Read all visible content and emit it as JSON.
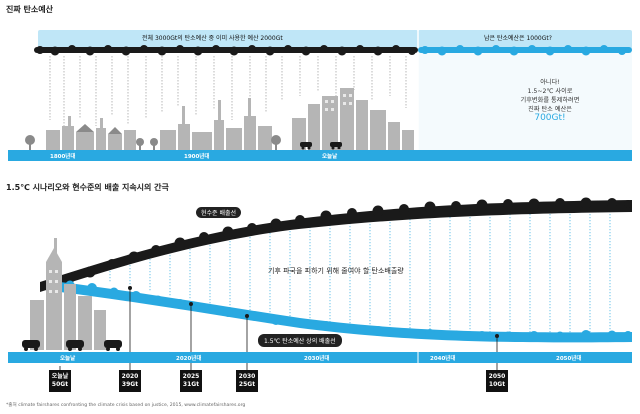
{
  "section1": {
    "title": "진짜 탄소예산",
    "band_used": "전체 3000Gt의 탄소예산 중 이미 사용한 예산 2000Gt",
    "band_remaining": "남은 탄소예산은 1000Gt?",
    "note_lines": [
      "아니다!",
      "1.5~2℃ 사이로",
      "기후변화를 통제하려면",
      "진짜 탄소 예산은"
    ],
    "note_value": "700Gt!",
    "timeline": [
      "1800년대",
      "1900년대",
      "오늘날"
    ]
  },
  "section2": {
    "title": "1.5℃ 시나리오와 현수준의 배출 지속시의 간극",
    "current_label": "현수준 배출선",
    "scenario_label": "1.5℃ 탄소예산 상의 배출선",
    "gap_label": "기후 파국을 피하기 위해 줄여야 할 탄소배출량",
    "timeline": [
      "오늘날",
      "2020년대",
      "2030년대",
      "2040년대",
      "2050년대"
    ],
    "milestones": [
      {
        "year": "오늘날",
        "value": "50Gt"
      },
      {
        "year": "2020",
        "value": "39Gt"
      },
      {
        "year": "2025",
        "value": "31Gt"
      },
      {
        "year": "2030",
        "value": "25Gt"
      },
      {
        "year": "2050",
        "value": "10Gt"
      }
    ]
  },
  "footnote": "*출처 climate fairshares confronting the climate crisis based on justice, 2015, www.climatefairshares.org",
  "colors": {
    "blue": "#29a9e1",
    "light_blue": "#bfe6f7",
    "dark": "#1a1a1a",
    "grey": "#b5b5b5"
  }
}
